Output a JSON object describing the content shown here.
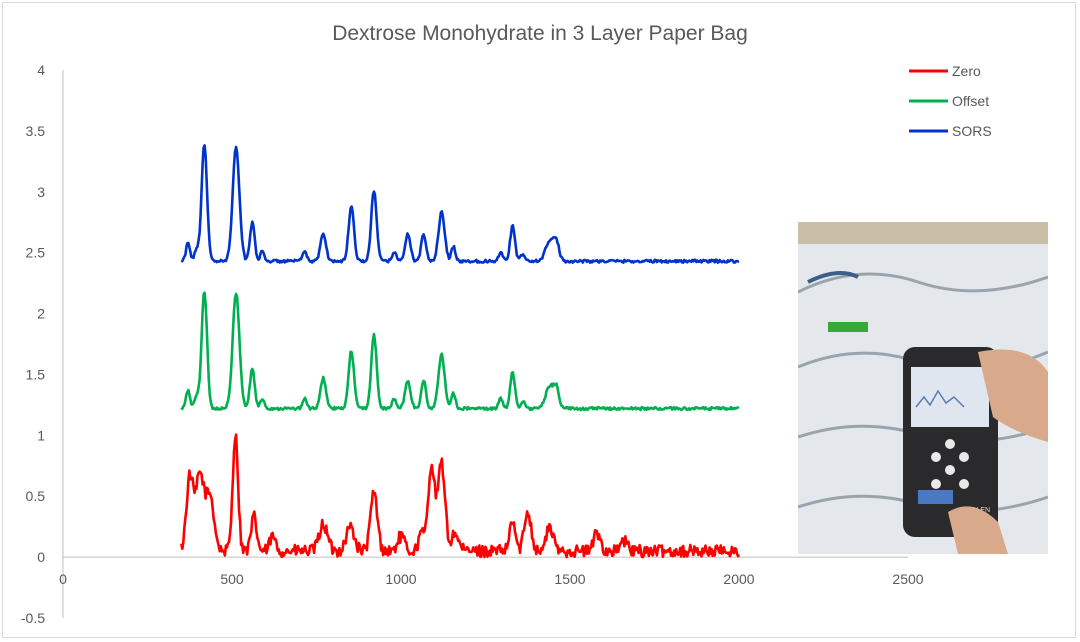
{
  "chart_data": {
    "type": "line",
    "title": "Dextrose Monohydrate in 3 Layer Paper Bag",
    "xlabel": "",
    "ylabel": "",
    "xlim": [
      0,
      2500
    ],
    "ylim": [
      -0.5,
      4
    ],
    "x_ticks": [
      "0",
      "500",
      "1000",
      "1500",
      "2000",
      "2500"
    ],
    "y_ticks": [
      "4",
      "3.5",
      "3",
      "2.5",
      "2",
      "1.5",
      "1",
      "0.5",
      "0",
      "-0.5"
    ],
    "grid": false,
    "legend_position": "top-right",
    "x_range": [
      350,
      2000
    ],
    "series": [
      {
        "name": "Zero",
        "color": "#ff0000",
        "baseline": 0.05,
        "noise": 0.05,
        "peaks": [
          [
            375,
            0.6,
            10
          ],
          [
            405,
            0.62,
            12
          ],
          [
            435,
            0.45,
            12
          ],
          [
            510,
            0.95,
            8
          ],
          [
            565,
            0.28,
            8
          ],
          [
            620,
            0.12,
            8
          ],
          [
            770,
            0.22,
            12
          ],
          [
            850,
            0.2,
            12
          ],
          [
            920,
            0.48,
            10
          ],
          [
            1000,
            0.12,
            10
          ],
          [
            1060,
            0.14,
            8
          ],
          [
            1090,
            0.7,
            10
          ],
          [
            1120,
            0.72,
            10
          ],
          [
            1160,
            0.15,
            10
          ],
          [
            1330,
            0.25,
            8
          ],
          [
            1375,
            0.33,
            10
          ],
          [
            1440,
            0.2,
            10
          ],
          [
            1580,
            0.15,
            10
          ],
          [
            1660,
            0.08,
            10
          ]
        ]
      },
      {
        "name": "Offset",
        "color": "#00b050",
        "baseline": 1.22,
        "noise": 0.012,
        "peaks": [
          [
            370,
            0.15,
            6
          ],
          [
            395,
            0.1,
            6
          ],
          [
            418,
            0.97,
            8
          ],
          [
            512,
            0.95,
            10
          ],
          [
            560,
            0.33,
            7
          ],
          [
            590,
            0.08,
            6
          ],
          [
            715,
            0.08,
            6
          ],
          [
            770,
            0.25,
            8
          ],
          [
            853,
            0.47,
            8
          ],
          [
            920,
            0.6,
            8
          ],
          [
            980,
            0.08,
            6
          ],
          [
            1020,
            0.23,
            8
          ],
          [
            1067,
            0.23,
            7
          ],
          [
            1120,
            0.45,
            9
          ],
          [
            1155,
            0.13,
            6
          ],
          [
            1295,
            0.08,
            6
          ],
          [
            1330,
            0.3,
            7
          ],
          [
            1360,
            0.06,
            6
          ],
          [
            1440,
            0.18,
            12
          ],
          [
            1460,
            0.15,
            8
          ]
        ]
      },
      {
        "name": "SORS",
        "color": "#0033cc",
        "baseline": 2.43,
        "noise": 0.012,
        "peaks": [
          [
            370,
            0.15,
            6
          ],
          [
            395,
            0.1,
            6
          ],
          [
            418,
            0.97,
            8
          ],
          [
            512,
            0.93,
            10
          ],
          [
            560,
            0.32,
            7
          ],
          [
            590,
            0.08,
            6
          ],
          [
            715,
            0.08,
            6
          ],
          [
            770,
            0.23,
            8
          ],
          [
            853,
            0.45,
            8
          ],
          [
            920,
            0.58,
            8
          ],
          [
            980,
            0.08,
            6
          ],
          [
            1020,
            0.22,
            8
          ],
          [
            1067,
            0.22,
            7
          ],
          [
            1120,
            0.4,
            9
          ],
          [
            1155,
            0.12,
            6
          ],
          [
            1295,
            0.08,
            6
          ],
          [
            1330,
            0.29,
            7
          ],
          [
            1360,
            0.06,
            6
          ],
          [
            1440,
            0.17,
            12
          ],
          [
            1460,
            0.14,
            8
          ]
        ]
      }
    ]
  },
  "photo": {
    "device_brand": "MALEN",
    "colors": {
      "wall": "#c9bfa8",
      "bag": "#e4e8ec",
      "bag_shadow": "#9aa4ae",
      "device": "#2a2a2c",
      "screen": "#dfe6ef",
      "accent_green": "#39a935",
      "hand": "#d8a98a"
    }
  }
}
